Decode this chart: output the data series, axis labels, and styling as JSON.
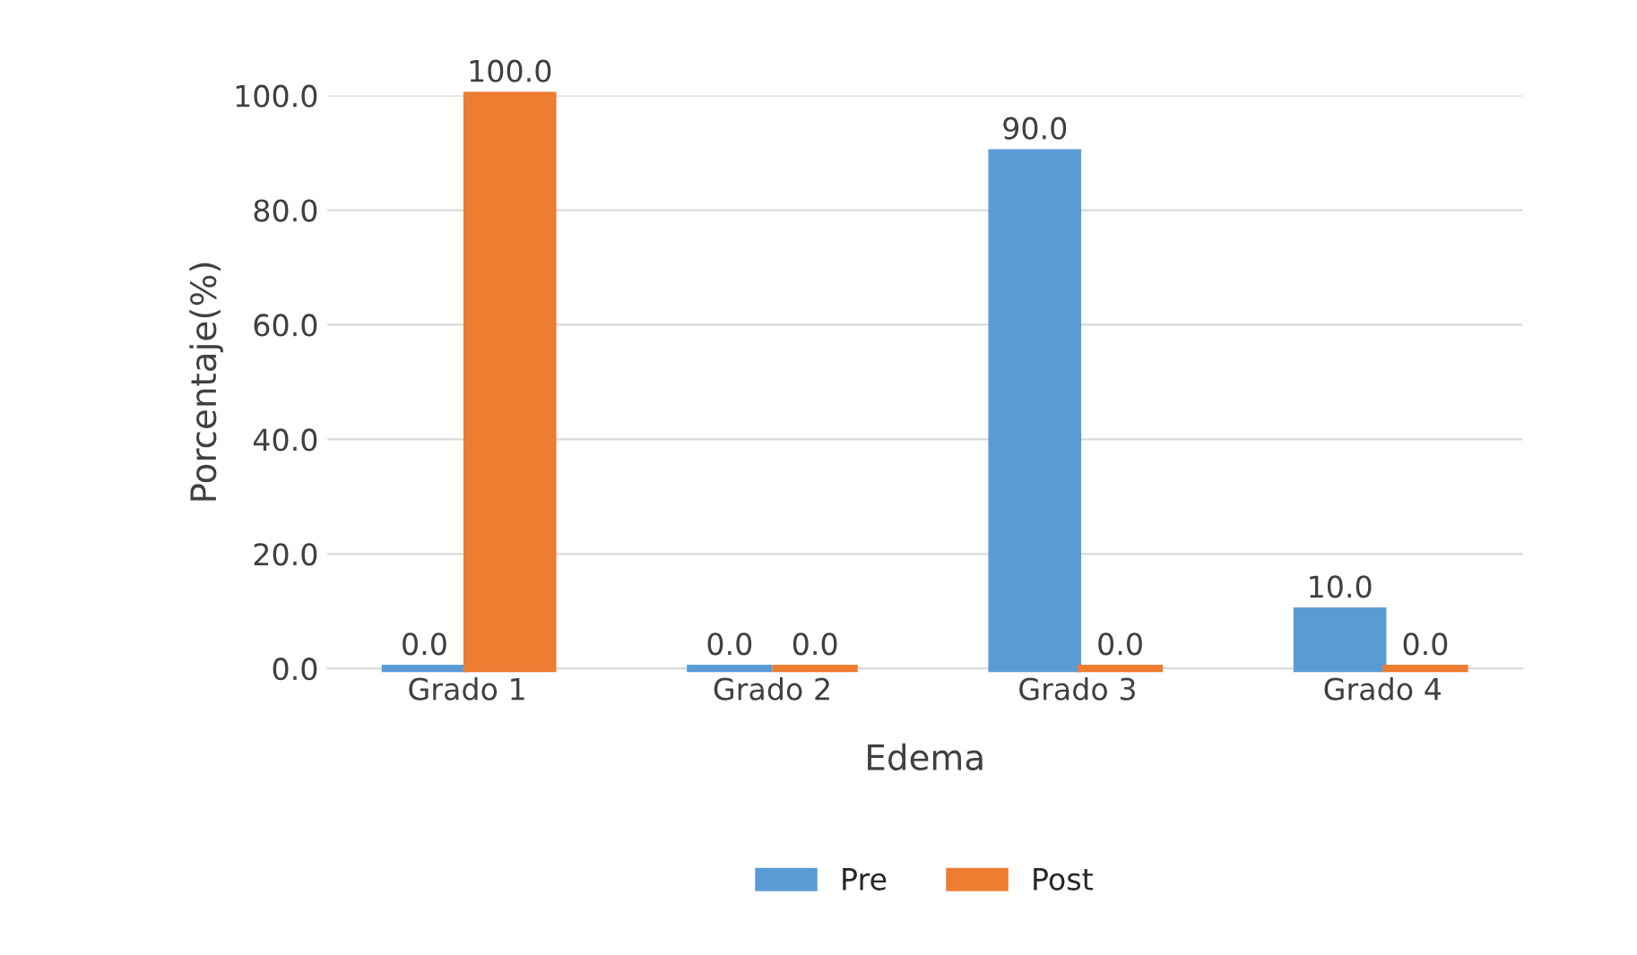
{
  "chart_data": {
    "type": "bar",
    "xlabel": "Edema",
    "ylabel": "Porcentaje(%)",
    "categories": [
      "Grado 1",
      "Grado 2",
      "Grado 3",
      "Grado 4"
    ],
    "series": [
      {
        "name": "Pre",
        "color": "#5b9bd5",
        "values": [
          0,
          0,
          90,
          10
        ],
        "value_labels": [
          "0.0",
          "0.0",
          "90.0",
          "10.0"
        ]
      },
      {
        "name": "Post",
        "color": "#ed7d31",
        "values": [
          100,
          0,
          0,
          0
        ],
        "value_labels": [
          "100.0",
          "0.0",
          "0.0",
          "0.0"
        ]
      }
    ],
    "ylim": [
      0,
      100
    ],
    "yticks": [
      {
        "value": 0,
        "label": "0.0"
      },
      {
        "value": 20,
        "label": "20.0"
      },
      {
        "value": 40,
        "label": "40.0"
      },
      {
        "value": 60,
        "label": "60.0"
      },
      {
        "value": 80,
        "label": "80.0"
      },
      {
        "value": 100,
        "label": "100.0"
      }
    ],
    "grid": "y",
    "legend": "bottom"
  }
}
